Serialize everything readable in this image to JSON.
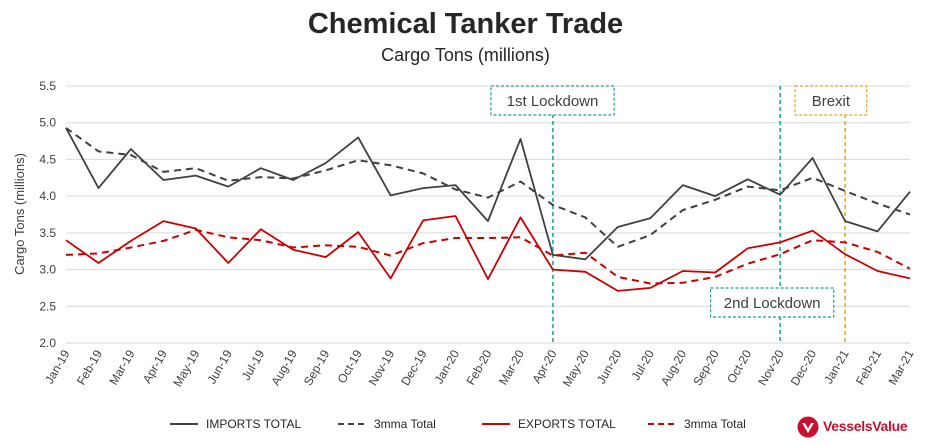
{
  "chart_data": {
    "type": "line",
    "title": "Chemical Tanker Trade",
    "subtitle": "Cargo Tons (millions)",
    "ylabel": "Cargo Tons (millions)",
    "xlabel": "",
    "ylim": [
      2.0,
      5.5
    ],
    "yticks": [
      "2.0",
      "2.5",
      "3.0",
      "3.5",
      "4.0",
      "4.5",
      "5.0",
      "5.5"
    ],
    "grid": true,
    "legend_position": "bottom",
    "categories": [
      "Jan-19",
      "Feb-19",
      "Mar-19",
      "Apr-19",
      "May-19",
      "Jun-19",
      "Jul-19",
      "Aug-19",
      "Sep-19",
      "Oct-19",
      "Nov-19",
      "Dec-19",
      "Jan-20",
      "Feb-20",
      "Mar-20",
      "Apr-20",
      "May-20",
      "Jun-20",
      "Jul-20",
      "Aug-20",
      "Sep-20",
      "Oct-20",
      "Nov-20",
      "Dec-20",
      "Jan-21",
      "Feb-21",
      "Mar-21"
    ],
    "series": [
      {
        "name": "IMPORTS TOTAL",
        "color": "#404040",
        "dash": "solid",
        "values": [
          4.93,
          4.11,
          4.64,
          4.22,
          4.28,
          4.13,
          4.38,
          4.22,
          4.45,
          4.8,
          4.01,
          4.11,
          4.15,
          3.66,
          4.78,
          3.2,
          3.14,
          3.58,
          3.7,
          4.15,
          4.0,
          4.23,
          4.02,
          4.52,
          3.66,
          3.52,
          4.06
        ]
      },
      {
        "name": "3mma Total",
        "color": "#404040",
        "dash": "dashed",
        "values": [
          4.93,
          4.61,
          4.56,
          4.33,
          4.38,
          4.21,
          4.26,
          4.24,
          4.35,
          4.49,
          4.42,
          4.31,
          4.09,
          3.98,
          4.2,
          3.88,
          3.71,
          3.31,
          3.47,
          3.81,
          3.95,
          4.13,
          4.08,
          4.25,
          4.07,
          3.9,
          3.75
        ]
      },
      {
        "name": "EXPORTS TOTAL",
        "color": "#cc0000",
        "dash": "solid",
        "values": [
          3.4,
          3.09,
          3.39,
          3.66,
          3.56,
          3.09,
          3.55,
          3.27,
          3.17,
          3.51,
          2.88,
          3.67,
          3.73,
          2.87,
          3.71,
          3.0,
          2.97,
          2.71,
          2.75,
          2.98,
          2.96,
          3.29,
          3.37,
          3.53,
          3.21,
          2.98,
          2.88
        ]
      },
      {
        "name": "3mma Total",
        "color": "#cc0000",
        "dash": "dashed",
        "values": [
          3.2,
          3.22,
          3.3,
          3.39,
          3.54,
          3.44,
          3.4,
          3.3,
          3.33,
          3.31,
          3.19,
          3.36,
          3.43,
          3.43,
          3.44,
          3.19,
          3.23,
          2.9,
          2.81,
          2.82,
          2.9,
          3.08,
          3.21,
          3.4,
          3.37,
          3.24,
          3.01
        ]
      }
    ],
    "annotations": [
      {
        "label": "1st Lockdown",
        "at": "Apr-20",
        "color": "#1a9e96",
        "box_position": "top"
      },
      {
        "label": "2nd Lockdown",
        "at": "Nov-20",
        "color": "#1a9e96",
        "box_position": "bottom"
      },
      {
        "label": "Brexit",
        "at": "Jan-21",
        "color": "#e8a317",
        "box_position": "top"
      }
    ]
  },
  "brand": {
    "name": "VesselsValue",
    "color": "#c8102e"
  }
}
